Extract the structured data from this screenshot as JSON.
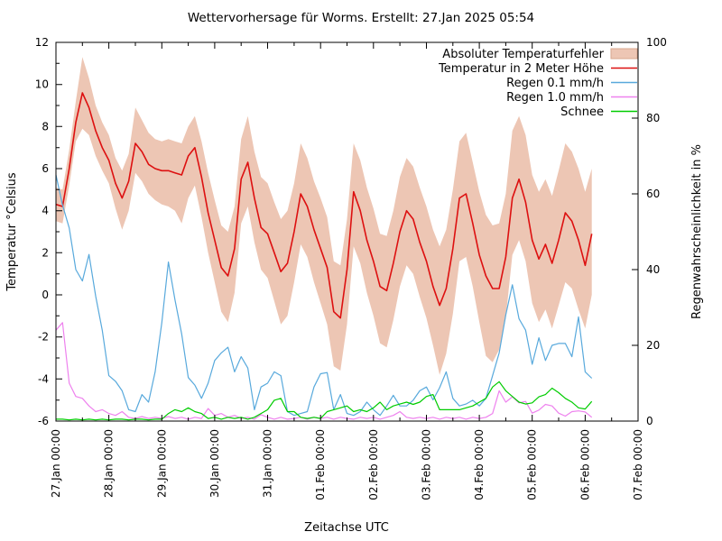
{
  "title": "Wettervorhersage für Worms. Erstellt: 27.Jan 2025 05:54",
  "chart_data": {
    "type": "line",
    "title": "Wettervorhersage für Worms. Erstellt: 27.Jan 2025 05:54",
    "xlabel": "Zeitachse UTC",
    "ylabel_left": "Temperatur °Celsius",
    "ylabel_right": "Regenwahrscheinlichkeit in %",
    "y_left_range": [
      -6,
      12
    ],
    "y_left_major_ticks": [
      12,
      10,
      8,
      6,
      4,
      2,
      0,
      -2,
      -4,
      -6
    ],
    "y_right_range": [
      0,
      100
    ],
    "y_right_major_ticks": [
      100,
      80,
      60,
      40,
      20,
      0
    ],
    "x_range_hours": [
      0,
      264
    ],
    "x_tick_labels": [
      "27.Jan 00:00",
      "28.Jan 00:00",
      "29.Jan 00:00",
      "30.Jan 00:00",
      "31.Jan 00:00",
      "01.Feb 00:00",
      "02.Feb 00:00",
      "03.Feb 00:00",
      "04.Feb 00:00",
      "05.Feb 00:00",
      "06.Feb 00:00",
      "07.Feb 00:00"
    ],
    "grid": false,
    "legend_position": "top-right-inside",
    "legend": [
      {
        "label": "Absoluter Temperaturfehler",
        "type": "band",
        "color": "#edc6b4",
        "axis": "left"
      },
      {
        "label": "Temperatur in 2 Meter Höhe",
        "type": "line",
        "color": "#dd1010",
        "axis": "left"
      },
      {
        "label": "Regen 0.1 mm/h",
        "type": "line",
        "color": "#58a9dc",
        "axis": "right"
      },
      {
        "label": "Regen 1.0 mm/h",
        "type": "line",
        "color": "#ee82ee",
        "axis": "right"
      },
      {
        "label": "Schnee",
        "type": "line",
        "color": "#00cc00",
        "axis": "right"
      }
    ],
    "time_step_hours": 3,
    "time_start_hour": 0,
    "series": {
      "temperature_error_band_upper_c": [
        5.1,
        5.0,
        6.9,
        9.2,
        11.3,
        10.3,
        9.0,
        8.2,
        7.6,
        6.5,
        5.9,
        6.7,
        8.9,
        8.3,
        7.7,
        7.4,
        7.3,
        7.4,
        7.3,
        7.2,
        8.0,
        8.5,
        7.3,
        5.8,
        4.5,
        3.3,
        3.0,
        4.2,
        7.4,
        8.5,
        6.8,
        5.6,
        5.3,
        4.4,
        3.6,
        4.0,
        5.3,
        7.2,
        6.5,
        5.4,
        4.6,
        3.7,
        1.6,
        1.4,
        3.6,
        7.2,
        6.4,
        5.1,
        4.1,
        2.9,
        2.8,
        4.0,
        5.6,
        6.5,
        6.1,
        5.1,
        4.2,
        3.1,
        2.3,
        3.1,
        5.0,
        7.3,
        7.7,
        6.3,
        4.9,
        3.8,
        3.3,
        3.4,
        4.8,
        7.8,
        8.5,
        7.6,
        5.7,
        4.9,
        5.5,
        4.7,
        5.9,
        7.2,
        6.8,
        6.0,
        4.9,
        6.0
      ],
      "temperature_error_band_lower_c": [
        3.5,
        3.4,
        5.2,
        7.3,
        7.9,
        7.6,
        6.6,
        5.9,
        5.3,
        4.1,
        3.1,
        4.0,
        5.8,
        5.4,
        4.8,
        4.5,
        4.3,
        4.2,
        4.0,
        3.4,
        4.6,
        5.2,
        3.7,
        2.0,
        0.6,
        -0.8,
        -1.3,
        0.1,
        3.4,
        4.2,
        2.5,
        1.2,
        0.8,
        -0.3,
        -1.4,
        -1.0,
        0.6,
        2.4,
        1.8,
        0.6,
        -0.4,
        -1.4,
        -3.4,
        -3.6,
        -1.4,
        2.3,
        1.5,
        0.1,
        -1.0,
        -2.3,
        -2.5,
        -1.2,
        0.4,
        1.4,
        1.0,
        -0.1,
        -1.1,
        -2.4,
        -3.8,
        -2.8,
        -0.9,
        1.6,
        1.8,
        0.4,
        -1.3,
        -2.9,
        -3.2,
        -2.6,
        -1.1,
        1.9,
        2.6,
        1.6,
        -0.4,
        -1.3,
        -0.7,
        -1.6,
        -0.5,
        0.6,
        0.3,
        -0.7,
        -1.6,
        0.0
      ],
      "temperature_2m_c": [
        4.3,
        4.2,
        6.0,
        8.2,
        9.6,
        8.9,
        7.8,
        7.0,
        6.4,
        5.3,
        4.6,
        5.4,
        7.2,
        6.8,
        6.2,
        6.0,
        5.9,
        5.9,
        5.8,
        5.7,
        6.6,
        7.0,
        5.6,
        3.9,
        2.6,
        1.3,
        0.9,
        2.2,
        5.5,
        6.3,
        4.6,
        3.2,
        2.9,
        2.0,
        1.1,
        1.5,
        3.0,
        4.8,
        4.2,
        3.1,
        2.2,
        1.3,
        -0.8,
        -1.1,
        1.2,
        4.9,
        4.0,
        2.6,
        1.6,
        0.4,
        0.2,
        1.5,
        3.0,
        4.0,
        3.6,
        2.5,
        1.6,
        0.4,
        -0.5,
        0.3,
        2.2,
        4.6,
        4.8,
        3.4,
        1.9,
        0.9,
        0.3,
        0.3,
        1.8,
        4.6,
        5.5,
        4.4,
        2.6,
        1.7,
        2.4,
        1.5,
        2.6,
        3.9,
        3.5,
        2.6,
        1.4,
        2.9
      ],
      "rain_01mmh_probability_pct": [
        65,
        57,
        51,
        40,
        37,
        44,
        33,
        24,
        12,
        10.5,
        8,
        3,
        2.5,
        7,
        5,
        13,
        26,
        42,
        32,
        23,
        11.5,
        9.5,
        6,
        10,
        16,
        18,
        19.5,
        13,
        17,
        14,
        3,
        9,
        10,
        13,
        12,
        2.5,
        1.5,
        2,
        2.5,
        9,
        12.5,
        12.8,
        3,
        7,
        2,
        1.5,
        2.5,
        5,
        3,
        1.5,
        4,
        6.8,
        4,
        4,
        5.5,
        8,
        9,
        5.6,
        8.8,
        13,
        6,
        4,
        4.5,
        5.5,
        4,
        6,
        12,
        18,
        28,
        36,
        27,
        24,
        15,
        22,
        16,
        20,
        20.5,
        20.5,
        17,
        27.5,
        13,
        11.3
      ],
      "rain_10mmh_probability_pct": [
        24,
        26,
        10,
        6.5,
        6,
        4,
        2.5,
        3,
        2,
        1.5,
        2.5,
        1,
        0.7,
        1.2,
        0.7,
        1,
        0.7,
        1.2,
        0.7,
        1,
        0.5,
        1,
        0.7,
        3.3,
        1.5,
        2,
        1,
        1.5,
        0.7,
        1,
        0.5,
        1.7,
        1,
        0.5,
        1,
        0.5,
        0.7,
        1,
        0.5,
        1,
        0.7,
        1,
        0.5,
        1,
        0.7,
        0.5,
        1,
        0.7,
        1,
        0.5,
        1,
        1.5,
        2.5,
        1,
        0.7,
        1,
        0.7,
        1,
        0.5,
        1,
        0.7,
        1,
        0.5,
        1,
        0.7,
        1,
        2,
        8,
        5,
        6.4,
        4.8,
        5.2,
        2.1,
        2.9,
        4.4,
        4,
        2.1,
        1.3,
        2.5,
        2.7,
        2.4,
        1
      ],
      "snow_probability_pct": [
        0.5,
        0.5,
        0.3,
        0.5,
        0.3,
        0.5,
        0.3,
        0.5,
        0.3,
        0.5,
        0.5,
        0.3,
        0.5,
        0.5,
        0.3,
        0.5,
        0.5,
        2,
        3,
        2.5,
        3.5,
        2.5,
        2,
        0.7,
        1,
        0.5,
        1,
        0.7,
        1,
        0.5,
        1,
        2,
        3,
        5.5,
        6,
        2.5,
        2.5,
        1,
        0.7,
        1,
        0.7,
        2.5,
        3,
        3.5,
        4,
        2.5,
        3,
        2.5,
        3.5,
        5,
        3,
        4,
        4.5,
        5,
        4.4,
        5,
        6.5,
        7,
        3,
        3,
        3,
        3,
        3.5,
        4,
        5,
        6,
        9,
        10.4,
        8,
        6.5,
        5,
        4.5,
        4.8,
        6.4,
        7,
        8.7,
        7.5,
        6,
        5,
        3.5,
        3.2,
        5.2
      ]
    }
  }
}
